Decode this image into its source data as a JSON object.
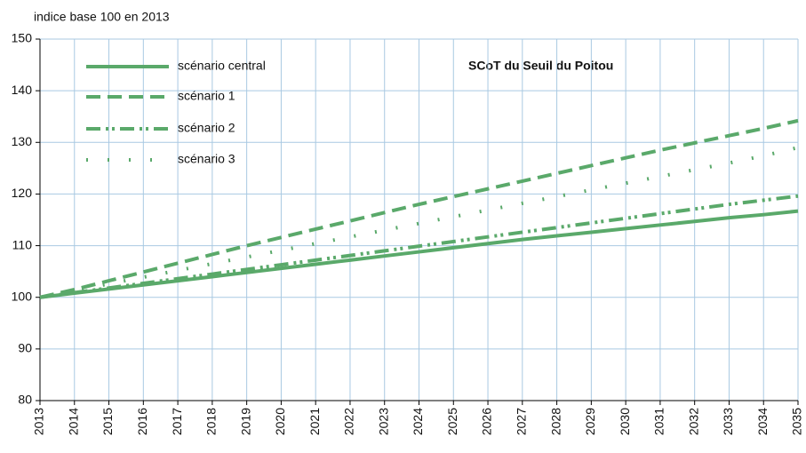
{
  "chart_data": {
    "type": "line",
    "title": "SCoT du Seuil du Poitou",
    "y_label": "indice base 100 en 2013",
    "x": [
      2013,
      2014,
      2015,
      2016,
      2017,
      2018,
      2019,
      2020,
      2021,
      2022,
      2023,
      2024,
      2025,
      2026,
      2027,
      2028,
      2029,
      2030,
      2031,
      2032,
      2033,
      2034,
      2035
    ],
    "series": [
      {
        "name": "scénario central",
        "color": "#5aa96a",
        "line_style": "solid",
        "values": [
          100,
          100.8,
          101.6,
          102.4,
          103.2,
          104.0,
          104.8,
          105.6,
          106.4,
          107.2,
          108.0,
          108.8,
          109.6,
          110.4,
          111.2,
          111.9,
          112.6,
          113.3,
          114.0,
          114.7,
          115.4,
          116.0,
          116.7
        ]
      },
      {
        "name": "scénario 1",
        "color": "#5aa96a",
        "line_style": "dashed",
        "values": [
          100,
          101.5,
          103.2,
          104.9,
          106.6,
          108.3,
          110.0,
          111.6,
          113.2,
          114.8,
          116.4,
          118.0,
          119.5,
          121.0,
          122.5,
          124.0,
          125.5,
          127.0,
          128.5,
          129.9,
          131.3,
          132.7,
          134.2
        ]
      },
      {
        "name": "scénario 2",
        "color": "#5aa96a",
        "line_style": "dashdot",
        "values": [
          100,
          100.9,
          101.8,
          102.7,
          103.6,
          104.5,
          105.4,
          106.3,
          107.2,
          108.1,
          109.0,
          109.9,
          110.8,
          111.7,
          112.6,
          113.5,
          114.4,
          115.3,
          116.2,
          117.1,
          118.0,
          118.8,
          119.6
        ]
      },
      {
        "name": "scénario 3",
        "color": "#5aa96a",
        "line_style": "dotted",
        "values": [
          100,
          101.3,
          102.6,
          103.9,
          105.2,
          106.5,
          107.8,
          109.1,
          110.4,
          111.7,
          113.0,
          114.3,
          115.6,
          116.9,
          118.2,
          119.5,
          120.8,
          122.1,
          123.4,
          124.7,
          126.0,
          127.4,
          129.0
        ]
      }
    ],
    "xlim": [
      2013,
      2035
    ],
    "xticks": [
      2013,
      2014,
      2015,
      2016,
      2017,
      2018,
      2019,
      2020,
      2021,
      2022,
      2023,
      2024,
      2025,
      2026,
      2027,
      2028,
      2029,
      2030,
      2031,
      2032,
      2033,
      2034,
      2035
    ],
    "ylim": [
      80,
      150
    ],
    "yticks": [
      80,
      90,
      100,
      110,
      120,
      130,
      140,
      150
    ],
    "grid": true,
    "legend": "upper left"
  }
}
